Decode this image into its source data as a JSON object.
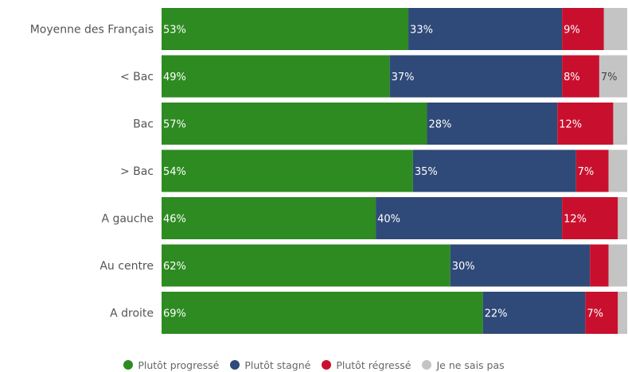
{
  "chart_data": {
    "type": "bar",
    "orientation": "horizontal",
    "stacked": true,
    "categories": [
      "Moyenne des Français",
      "< Bac",
      "Bac",
      "> Bac",
      "A gauche",
      "Au centre",
      "A droite"
    ],
    "series": [
      {
        "name": "Plutôt progressé",
        "color": "#2e8b22",
        "values": [
          53,
          49,
          57,
          54,
          46,
          62,
          69
        ],
        "labels": [
          "53%",
          "49%",
          "57%",
          "54%",
          "46%",
          "62%",
          "69%"
        ]
      },
      {
        "name": "Plutôt stagné",
        "color": "#2f4a78",
        "values": [
          33,
          37,
          28,
          35,
          40,
          30,
          22
        ],
        "labels": [
          "33%",
          "37%",
          "28%",
          "35%",
          "40%",
          "30%",
          "22%"
        ]
      },
      {
        "name": "Plutôt régressé",
        "color": "#c8102e",
        "values": [
          9,
          8,
          12,
          7,
          12,
          4,
          7
        ],
        "labels": [
          "9%",
          "8%",
          "12%",
          "7%",
          "12%",
          "",
          "7%"
        ]
      },
      {
        "name": "Je ne sais pas",
        "color": "#c4c4c4",
        "values": [
          5,
          7,
          3,
          4,
          2,
          4,
          2
        ],
        "labels": [
          "",
          "7%",
          "",
          "",
          "",
          "",
          ""
        ]
      }
    ],
    "xlim": [
      0,
      100
    ],
    "grid": false,
    "legend_position": "bottom"
  }
}
